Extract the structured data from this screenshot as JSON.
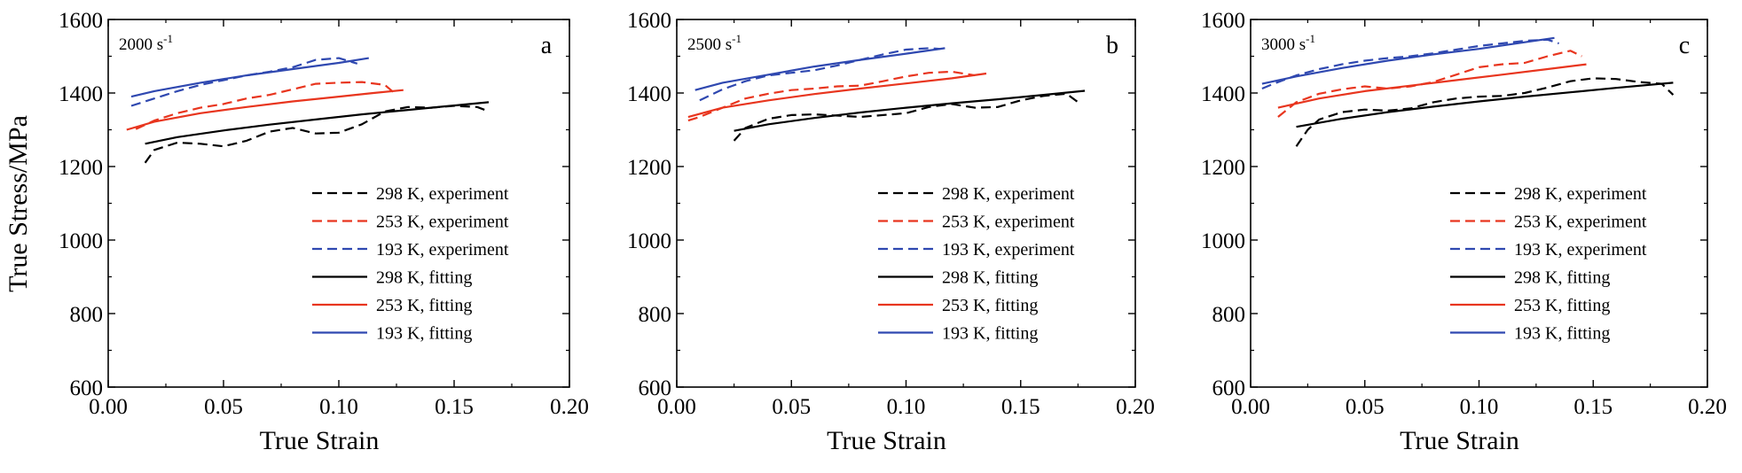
{
  "chart_data": [
    {
      "type": "line",
      "panel_label": "a",
      "strain_rate_label": "2000 s",
      "strain_rate_exponent": "-1",
      "xlabel": "True Strain",
      "ylabel": "True Stress/MPa",
      "xlim": [
        0.0,
        0.2
      ],
      "ylim": [
        600,
        1600
      ],
      "x_ticks": [
        "0.00",
        "0.05",
        "0.10",
        "0.15",
        "0.20"
      ],
      "y_ticks": [
        "600",
        "800",
        "1000",
        "1200",
        "1400",
        "1600"
      ],
      "legend_position": "bottom-right",
      "series": [
        {
          "name": "298 K, experiment",
          "color": "#000000",
          "dash": "dashed",
          "points": [
            [
              0.016,
              1210
            ],
            [
              0.02,
              1245
            ],
            [
              0.03,
              1265
            ],
            [
              0.04,
              1262
            ],
            [
              0.05,
              1255
            ],
            [
              0.06,
              1270
            ],
            [
              0.07,
              1295
            ],
            [
              0.08,
              1305
            ],
            [
              0.09,
              1290
            ],
            [
              0.1,
              1292
            ],
            [
              0.11,
              1315
            ],
            [
              0.12,
              1350
            ],
            [
              0.13,
              1362
            ],
            [
              0.14,
              1360
            ],
            [
              0.15,
              1365
            ],
            [
              0.16,
              1362
            ],
            [
              0.165,
              1350
            ]
          ]
        },
        {
          "name": "253 K, experiment",
          "color": "#e8351e",
          "dash": "dashed",
          "points": [
            [
              0.012,
              1302
            ],
            [
              0.02,
              1325
            ],
            [
              0.03,
              1345
            ],
            [
              0.04,
              1360
            ],
            [
              0.05,
              1370
            ],
            [
              0.06,
              1385
            ],
            [
              0.07,
              1395
            ],
            [
              0.08,
              1410
            ],
            [
              0.09,
              1425
            ],
            [
              0.1,
              1428
            ],
            [
              0.11,
              1430
            ],
            [
              0.12,
              1422
            ],
            [
              0.125,
              1395
            ]
          ]
        },
        {
          "name": "193 K, experiment",
          "color": "#2f48b0",
          "dash": "dashed",
          "points": [
            [
              0.01,
              1365
            ],
            [
              0.02,
              1385
            ],
            [
              0.03,
              1405
            ],
            [
              0.04,
              1422
            ],
            [
              0.05,
              1435
            ],
            [
              0.06,
              1448
            ],
            [
              0.07,
              1458
            ],
            [
              0.08,
              1470
            ],
            [
              0.09,
              1490
            ],
            [
              0.1,
              1495
            ],
            [
              0.108,
              1480
            ]
          ]
        },
        {
          "name": "298 K, fitting",
          "color": "#000000",
          "dash": "solid",
          "points": [
            [
              0.016,
              1262
            ],
            [
              0.03,
              1280
            ],
            [
              0.05,
              1298
            ],
            [
              0.07,
              1314
            ],
            [
              0.09,
              1328
            ],
            [
              0.11,
              1342
            ],
            [
              0.13,
              1354
            ],
            [
              0.15,
              1366
            ],
            [
              0.165,
              1375
            ]
          ]
        },
        {
          "name": "253 K, fitting",
          "color": "#e8351e",
          "dash": "solid",
          "points": [
            [
              0.008,
              1300
            ],
            [
              0.02,
              1322
            ],
            [
              0.04,
              1345
            ],
            [
              0.06,
              1362
            ],
            [
              0.08,
              1377
            ],
            [
              0.1,
              1390
            ],
            [
              0.115,
              1400
            ],
            [
              0.128,
              1408
            ]
          ]
        },
        {
          "name": "193 K, fitting",
          "color": "#2f48b0",
          "dash": "solid",
          "points": [
            [
              0.01,
              1390
            ],
            [
              0.02,
              1405
            ],
            [
              0.04,
              1428
            ],
            [
              0.06,
              1448
            ],
            [
              0.08,
              1465
            ],
            [
              0.1,
              1482
            ],
            [
              0.113,
              1495
            ]
          ]
        }
      ]
    },
    {
      "type": "line",
      "panel_label": "b",
      "strain_rate_label": "2500 s",
      "strain_rate_exponent": "-1",
      "xlabel": "True Strain",
      "ylabel": "",
      "xlim": [
        0.0,
        0.2
      ],
      "ylim": [
        600,
        1600
      ],
      "x_ticks": [
        "0.00",
        "0.05",
        "0.10",
        "0.15",
        "0.20"
      ],
      "y_ticks": [
        "600",
        "800",
        "1000",
        "1200",
        "1400",
        "1600"
      ],
      "legend_position": "bottom-right",
      "series": [
        {
          "name": "298 K, experiment",
          "color": "#000000",
          "dash": "dashed",
          "points": [
            [
              0.025,
              1270
            ],
            [
              0.03,
              1305
            ],
            [
              0.04,
              1330
            ],
            [
              0.05,
              1340
            ],
            [
              0.06,
              1342
            ],
            [
              0.08,
              1335
            ],
            [
              0.1,
              1345
            ],
            [
              0.11,
              1362
            ],
            [
              0.12,
              1370
            ],
            [
              0.13,
              1360
            ],
            [
              0.14,
              1362
            ],
            [
              0.15,
              1380
            ],
            [
              0.16,
              1392
            ],
            [
              0.17,
              1398
            ],
            [
              0.175,
              1375
            ]
          ]
        },
        {
          "name": "253 K, experiment",
          "color": "#e8351e",
          "dash": "dashed",
          "points": [
            [
              0.005,
              1325
            ],
            [
              0.01,
              1335
            ],
            [
              0.02,
              1360
            ],
            [
              0.03,
              1385
            ],
            [
              0.04,
              1398
            ],
            [
              0.05,
              1408
            ],
            [
              0.06,
              1412
            ],
            [
              0.07,
              1418
            ],
            [
              0.08,
              1420
            ],
            [
              0.09,
              1432
            ],
            [
              0.1,
              1445
            ],
            [
              0.11,
              1455
            ],
            [
              0.12,
              1458
            ],
            [
              0.13,
              1448
            ]
          ]
        },
        {
          "name": "193 K, experiment",
          "color": "#2f48b0",
          "dash": "dashed",
          "points": [
            [
              0.01,
              1380
            ],
            [
              0.02,
              1410
            ],
            [
              0.03,
              1432
            ],
            [
              0.04,
              1448
            ],
            [
              0.05,
              1455
            ],
            [
              0.06,
              1462
            ],
            [
              0.07,
              1475
            ],
            [
              0.08,
              1490
            ],
            [
              0.09,
              1505
            ],
            [
              0.1,
              1518
            ],
            [
              0.11,
              1522
            ],
            [
              0.115,
              1520
            ]
          ]
        },
        {
          "name": "298 K, fitting",
          "color": "#000000",
          "dash": "solid",
          "points": [
            [
              0.025,
              1297
            ],
            [
              0.04,
              1315
            ],
            [
              0.06,
              1332
            ],
            [
              0.08,
              1347
            ],
            [
              0.1,
              1360
            ],
            [
              0.12,
              1372
            ],
            [
              0.14,
              1383
            ],
            [
              0.16,
              1395
            ],
            [
              0.178,
              1406
            ]
          ]
        },
        {
          "name": "253 K, fitting",
          "color": "#e8351e",
          "dash": "solid",
          "points": [
            [
              0.005,
              1335
            ],
            [
              0.02,
              1360
            ],
            [
              0.04,
              1380
            ],
            [
              0.06,
              1397
            ],
            [
              0.08,
              1412
            ],
            [
              0.1,
              1426
            ],
            [
              0.12,
              1440
            ],
            [
              0.135,
              1453
            ]
          ]
        },
        {
          "name": "193 K, fitting",
          "color": "#2f48b0",
          "dash": "solid",
          "points": [
            [
              0.008,
              1408
            ],
            [
              0.02,
              1428
            ],
            [
              0.04,
              1450
            ],
            [
              0.06,
              1472
            ],
            [
              0.08,
              1490
            ],
            [
              0.1,
              1507
            ],
            [
              0.117,
              1522
            ]
          ]
        }
      ]
    },
    {
      "type": "line",
      "panel_label": "c",
      "strain_rate_label": "3000 s",
      "strain_rate_exponent": "-1",
      "xlabel": "True Strain",
      "ylabel": "",
      "xlim": [
        0.0,
        0.2
      ],
      "ylim": [
        600,
        1600
      ],
      "x_ticks": [
        "0.00",
        "0.05",
        "0.10",
        "0.15",
        "0.20"
      ],
      "y_ticks": [
        "600",
        "800",
        "1000",
        "1200",
        "1400",
        "1600"
      ],
      "legend_position": "bottom-right",
      "series": [
        {
          "name": "298 K, experiment",
          "color": "#000000",
          "dash": "dashed",
          "points": [
            [
              0.02,
              1255
            ],
            [
              0.025,
              1300
            ],
            [
              0.03,
              1328
            ],
            [
              0.04,
              1348
            ],
            [
              0.05,
              1355
            ],
            [
              0.06,
              1352
            ],
            [
              0.07,
              1358
            ],
            [
              0.08,
              1375
            ],
            [
              0.09,
              1385
            ],
            [
              0.1,
              1390
            ],
            [
              0.11,
              1392
            ],
            [
              0.12,
              1400
            ],
            [
              0.13,
              1415
            ],
            [
              0.14,
              1432
            ],
            [
              0.15,
              1440
            ],
            [
              0.16,
              1438
            ],
            [
              0.17,
              1430
            ],
            [
              0.18,
              1425
            ],
            [
              0.185,
              1395
            ]
          ]
        },
        {
          "name": "253 K, experiment",
          "color": "#e8351e",
          "dash": "dashed",
          "points": [
            [
              0.012,
              1335
            ],
            [
              0.02,
              1375
            ],
            [
              0.03,
              1398
            ],
            [
              0.04,
              1410
            ],
            [
              0.05,
              1418
            ],
            [
              0.06,
              1412
            ],
            [
              0.07,
              1418
            ],
            [
              0.08,
              1430
            ],
            [
              0.09,
              1450
            ],
            [
              0.1,
              1470
            ],
            [
              0.11,
              1478
            ],
            [
              0.12,
              1482
            ],
            [
              0.13,
              1500
            ],
            [
              0.14,
              1515
            ],
            [
              0.145,
              1500
            ]
          ]
        },
        {
          "name": "193 K, experiment",
          "color": "#2f48b0",
          "dash": "dashed",
          "points": [
            [
              0.005,
              1412
            ],
            [
              0.01,
              1425
            ],
            [
              0.02,
              1448
            ],
            [
              0.03,
              1465
            ],
            [
              0.04,
              1478
            ],
            [
              0.05,
              1488
            ],
            [
              0.06,
              1495
            ],
            [
              0.07,
              1500
            ],
            [
              0.08,
              1508
            ],
            [
              0.09,
              1518
            ],
            [
              0.1,
              1528
            ],
            [
              0.11,
              1535
            ],
            [
              0.12,
              1542
            ],
            [
              0.13,
              1545
            ],
            [
              0.135,
              1535
            ]
          ]
        },
        {
          "name": "298 K, fitting",
          "color": "#000000",
          "dash": "solid",
          "points": [
            [
              0.02,
              1308
            ],
            [
              0.04,
              1330
            ],
            [
              0.06,
              1348
            ],
            [
              0.08,
              1363
            ],
            [
              0.1,
              1377
            ],
            [
              0.12,
              1390
            ],
            [
              0.14,
              1402
            ],
            [
              0.16,
              1414
            ],
            [
              0.185,
              1428
            ]
          ]
        },
        {
          "name": "253 K, fitting",
          "color": "#e8351e",
          "dash": "solid",
          "points": [
            [
              0.012,
              1360
            ],
            [
              0.03,
              1385
            ],
            [
              0.05,
              1405
            ],
            [
              0.07,
              1420
            ],
            [
              0.09,
              1435
            ],
            [
              0.11,
              1450
            ],
            [
              0.13,
              1465
            ],
            [
              0.147,
              1478
            ]
          ]
        },
        {
          "name": "193 K, fitting",
          "color": "#2f48b0",
          "dash": "solid",
          "points": [
            [
              0.005,
              1425
            ],
            [
              0.02,
              1445
            ],
            [
              0.04,
              1468
            ],
            [
              0.06,
              1488
            ],
            [
              0.08,
              1505
            ],
            [
              0.1,
              1520
            ],
            [
              0.12,
              1538
            ],
            [
              0.133,
              1550
            ]
          ]
        }
      ]
    }
  ]
}
